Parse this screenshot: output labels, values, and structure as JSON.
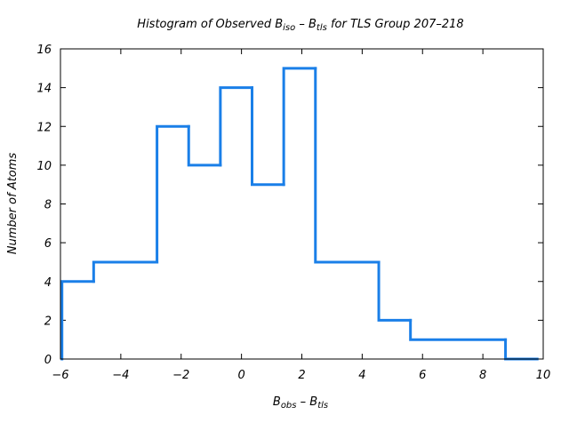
{
  "chart_data": {
    "type": "histogram",
    "title_parts": {
      "prefix": "Histogram of Observed B",
      "sub1": "iso",
      "middle": " – B",
      "sub2": "tls",
      "suffix": " for TLS Group 207–218"
    },
    "xlabel_parts": {
      "b1": "B",
      "sub1": "obs",
      "middle": " – B",
      "sub2": "tls"
    },
    "ylabel": "Number of Atoms",
    "xlim": [
      -6,
      10
    ],
    "ylim": [
      0,
      16
    ],
    "x_ticks": [
      -6,
      -4,
      -2,
      0,
      2,
      4,
      6,
      8,
      10
    ],
    "x_tick_labels": [
      "−6",
      "−4",
      "−2",
      "0",
      "2",
      "4",
      "6",
      "8",
      "10"
    ],
    "y_ticks": [
      0,
      2,
      4,
      6,
      8,
      10,
      12,
      14,
      16
    ],
    "y_tick_labels": [
      "0",
      "2",
      "4",
      "6",
      "8",
      "10",
      "12",
      "14",
      "16"
    ],
    "bin_edges": [
      -5.95,
      -4.9,
      -2.8,
      -1.75,
      -0.7,
      0.35,
      1.4,
      2.45,
      4.55,
      5.6,
      8.75,
      9.8
    ],
    "counts": [
      4,
      5,
      12,
      10,
      14,
      9,
      15,
      5,
      2,
      1,
      0
    ],
    "line_color": "#1a7fe8",
    "grid": false
  }
}
